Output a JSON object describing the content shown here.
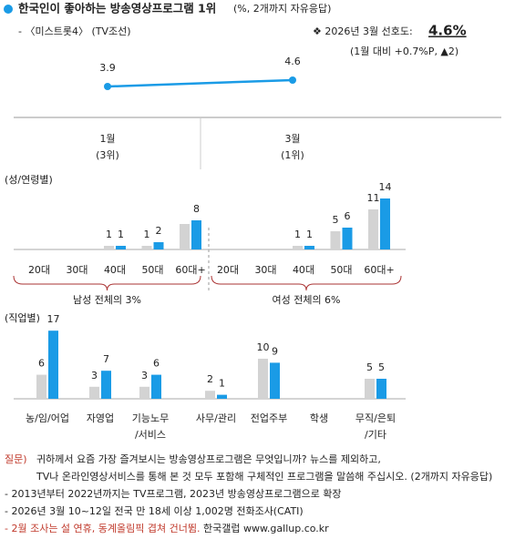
{
  "chart_data": [
    {
      "type": "line",
      "title": "한국인이 좋아하는 방송영상프로그램 1위",
      "title_note": "(%, 2개까지 자유응답)",
      "subtitle": "- 〈미스트롯4〉 (TV조선)",
      "highlight_label": "❖  2026년 3월 선호도:",
      "highlight_value": "4.6%",
      "highlight_note": "(1월 대비 +0.7%P, ▲2)",
      "categories": [
        "1월",
        "3월"
      ],
      "ranks": [
        "(3위)",
        "(1위)"
      ],
      "values": [
        3.9,
        4.6
      ],
      "color": "#1a9be6"
    },
    {
      "type": "bar",
      "axis_label": "(성/연령별)",
      "categories": [
        "20대",
        "30대",
        "40대",
        "50대",
        "60대+",
        "20대",
        "30대",
        "40대",
        "50대",
        "60대+"
      ],
      "group_labels": [
        "남성 전체의 3%",
        "여성 전체의 6%"
      ],
      "series": [
        {
          "color": "#d3d3d3",
          "values": [
            null,
            null,
            1,
            1,
            7,
            null,
            null,
            1,
            5,
            11
          ],
          "value_labels": [
            null,
            null,
            "1",
            "1",
            null,
            null,
            null,
            "1",
            "5",
            "11"
          ]
        },
        {
          "color": "#1a9be6",
          "values": [
            null,
            null,
            1,
            2,
            8,
            null,
            null,
            1,
            6,
            14
          ]
        }
      ]
    },
    {
      "type": "bar",
      "axis_label": "(직업별)",
      "categories": [
        [
          "농/임/어업"
        ],
        [
          "자영업"
        ],
        [
          "기능노무",
          "/서비스"
        ],
        [
          "사무/관리"
        ],
        [
          "전업주부"
        ],
        [
          "학생"
        ],
        [
          "무직/은퇴",
          "/기타"
        ]
      ],
      "series": [
        {
          "color": "#d3d3d3",
          "values": [
            6,
            3,
            3,
            2,
            10,
            null,
            5
          ]
        },
        {
          "color": "#1a9be6",
          "values": [
            17,
            7,
            6,
            1,
            9,
            null,
            5
          ]
        }
      ]
    }
  ],
  "footnotes": {
    "question_label": "질문)",
    "question": [
      "귀하께서 요즘 가장 즐겨보시는 방송영상프로그램은 무엇입니까? 뉴스를 제외하고,",
      "TV나 온라인영상서비스를 통해 본 것 모두 포함해 구체적인 프로그램을 말씀해 주십시오. (2개까지 자유응답)"
    ],
    "notes": [
      "- 2013년부터 2022년까지는 TV프로그램, 2023년 방송영상프로그램으로 확장",
      "- 2026년 3월 10~12일 전국 만 18세 이상 1,002명 전화조사(CATI)"
    ],
    "red_note": "- 2월 조사는 설 연휴, 동계올림픽 겹쳐 건너뜀.",
    "source": " 한국갤럽 www.gallup.co.kr"
  }
}
